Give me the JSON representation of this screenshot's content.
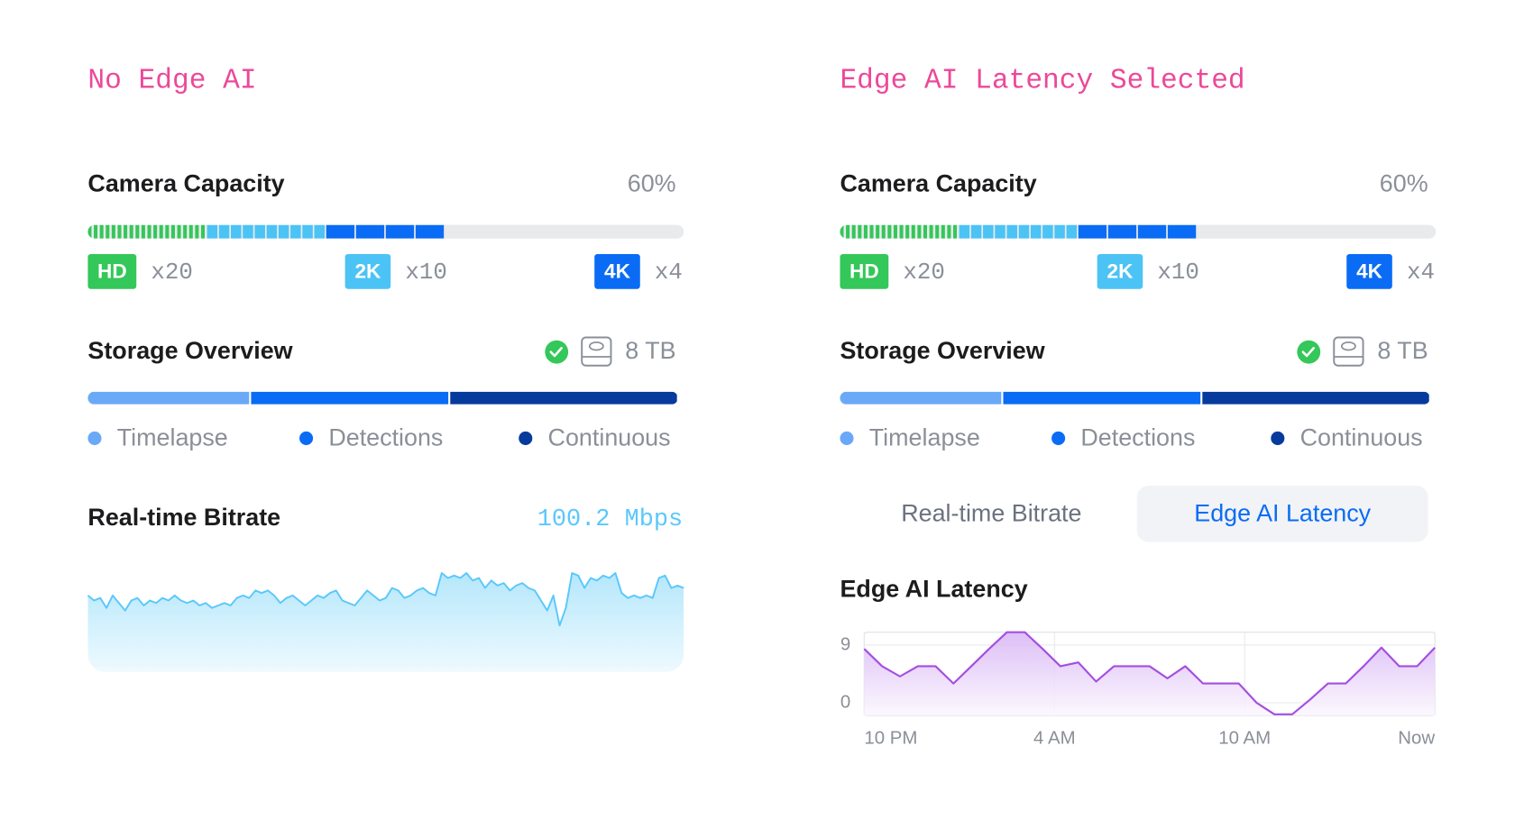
{
  "panels": [
    {
      "heading": "No Edge AI",
      "camera": {
        "title": "Camera Capacity",
        "usage": {
          "value": 60,
          "label": "60%"
        },
        "tiers": [
          {
            "name": "HD",
            "color": "#34c759",
            "count": {
              "value": 20,
              "label": "x20"
            }
          },
          {
            "name": "2K",
            "color": "#4cc3f5",
            "count": {
              "value": 10,
              "label": "x10"
            }
          },
          {
            "name": "4K",
            "color": "#0a6cf5",
            "count": {
              "value": 4,
              "label": "x4"
            }
          }
        ]
      },
      "storage": {
        "title": "Storage Overview",
        "capacity": {
          "value": 8,
          "label": "8 TB"
        },
        "segments": [
          {
            "name": "Timelapse",
            "color": "#6aa9f8",
            "value": 2.2
          },
          {
            "name": "Detections",
            "color": "#0a6cf5",
            "value": 2.7
          },
          {
            "name": "Continuous",
            "color": "#063a9c",
            "value": 3.1
          }
        ]
      },
      "bitrate": {
        "title": "Real-time Bitrate",
        "current": "100.2 Mbps",
        "color": "#5ac8fa",
        "values": [
          101,
          99,
          100,
          96,
          101,
          98,
          95,
          99,
          100,
          97,
          99,
          98,
          100,
          99,
          101,
          99,
          98,
          99,
          97,
          98,
          96,
          97,
          98,
          97,
          100,
          101,
          100,
          103,
          102,
          103,
          101,
          98,
          100,
          101,
          99,
          97,
          99,
          101,
          100,
          102,
          103,
          99,
          98,
          97,
          100,
          103,
          101,
          99,
          100,
          104,
          103,
          100,
          101,
          103,
          104,
          102,
          101,
          110,
          108,
          109,
          108,
          110,
          107,
          108,
          104,
          107,
          105,
          106,
          103,
          105,
          106,
          104,
          103,
          99,
          95,
          101,
          89,
          96,
          110,
          109,
          104,
          108,
          107,
          109,
          108,
          110,
          102,
          100,
          101,
          100,
          101,
          100,
          108,
          109,
          104,
          105,
          104
        ]
      }
    },
    {
      "heading": "Edge AI Latency Selected",
      "camera": {
        "title": "Camera Capacity",
        "usage": {
          "value": 60,
          "label": "60%"
        },
        "tiers": [
          {
            "name": "HD",
            "color": "#34c759",
            "count": {
              "value": 20,
              "label": "x20"
            }
          },
          {
            "name": "2K",
            "color": "#4cc3f5",
            "count": {
              "value": 10,
              "label": "x10"
            }
          },
          {
            "name": "4K",
            "color": "#0a6cf5",
            "count": {
              "value": 4,
              "label": "x4"
            }
          }
        ]
      },
      "storage": {
        "title": "Storage Overview",
        "capacity": {
          "value": 8,
          "label": "8 TB"
        },
        "segments": [
          {
            "name": "Timelapse",
            "color": "#6aa9f8",
            "value": 2.2
          },
          {
            "name": "Detections",
            "color": "#0a6cf5",
            "value": 2.7
          },
          {
            "name": "Continuous",
            "color": "#063a9c",
            "value": 3.1
          }
        ]
      },
      "tabs": {
        "items": [
          "Real-time Bitrate",
          "Edge AI Latency"
        ],
        "selected": 1
      },
      "latency": {
        "type": "line",
        "title": "Edge AI Latency",
        "color": "#a54ee0",
        "grid": true,
        "x": [
          0,
          0.5625,
          1.125,
          1.6875,
          2.25,
          2.8125,
          3.375,
          3.9375,
          4.5,
          5.0625,
          5.625,
          6.1875,
          6.75,
          7.3125,
          7.875,
          8.4375,
          9,
          9.5625,
          10.125,
          10.6875,
          11.25,
          11.8125,
          12.375,
          12.9375,
          13.5,
          14.0625,
          14.625,
          15.1875,
          15.75,
          16.3125,
          16.875,
          17.4375,
          18
        ],
        "values": [
          8.4,
          5.7,
          4.1,
          5.7,
          5.7,
          3,
          5.7,
          8.4,
          11,
          11,
          8.4,
          5.7,
          6.3,
          3.3,
          5.7,
          5.7,
          5.7,
          3.8,
          5.7,
          3,
          3,
          3,
          0,
          -1.8,
          -1.8,
          0.5,
          3,
          3,
          5.7,
          8.6,
          5.7,
          5.7,
          8.6
        ],
        "xlim": [
          0,
          18
        ],
        "ylim": [
          -2,
          11
        ],
        "yticks": [
          0,
          9
        ],
        "xticks": [
          {
            "value": 0,
            "label": "10 PM"
          },
          {
            "value": 6,
            "label": "4 AM"
          },
          {
            "value": 12,
            "label": "10 AM"
          },
          {
            "value": 18,
            "label": "Now"
          }
        ]
      }
    }
  ]
}
